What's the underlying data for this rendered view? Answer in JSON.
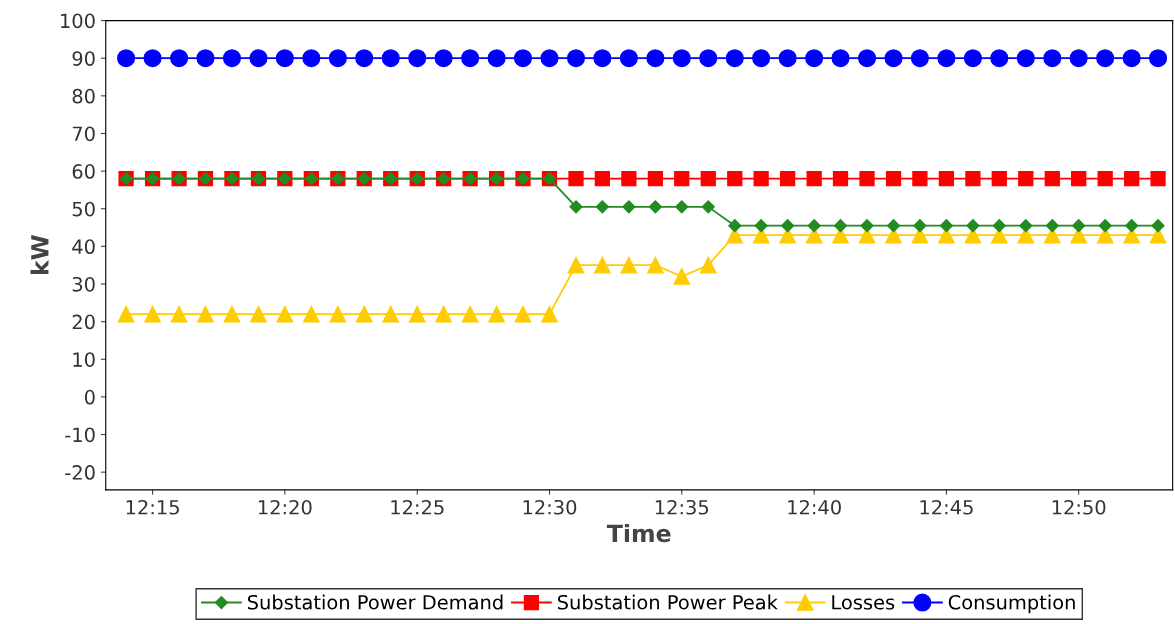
{
  "chart_data": {
    "type": "line",
    "xlabel": "Time",
    "ylabel": "kW",
    "x": [
      12.2333,
      12.25,
      12.2667,
      12.2833,
      12.3,
      12.3167,
      12.3333,
      12.35,
      12.3667,
      12.3833,
      12.4,
      12.4167,
      12.4333,
      12.45,
      12.4667,
      12.4833,
      12.5,
      12.5167,
      12.5333,
      12.55,
      12.5667,
      12.5833,
      12.6,
      12.6167,
      12.6333,
      12.65,
      12.6667,
      12.6833,
      12.7,
      12.7167,
      12.7333,
      12.75,
      12.7667,
      12.7833,
      12.8,
      12.8167,
      12.8333,
      12.85,
      12.8667,
      12.8833
    ],
    "series": [
      {
        "name": "Substation Power Demand",
        "color": "#228b22",
        "marker": "diamond",
        "values": [
          58,
          58,
          58,
          58,
          58,
          58,
          58,
          58,
          58,
          58,
          58,
          58,
          58,
          58,
          58,
          58,
          58,
          50.5,
          50.5,
          50.5,
          50.5,
          50.5,
          50.5,
          45.5,
          45.5,
          45.5,
          45.5,
          45.5,
          45.5,
          45.5,
          45.5,
          45.5,
          45.5,
          45.5,
          45.5,
          45.5,
          45.5,
          45.5,
          45.5,
          45.5
        ]
      },
      {
        "name": "Substation Power Peak",
        "color": "#ff0000",
        "marker": "square",
        "values": [
          58,
          58,
          58,
          58,
          58,
          58,
          58,
          58,
          58,
          58,
          58,
          58,
          58,
          58,
          58,
          58,
          58,
          58,
          58,
          58,
          58,
          58,
          58,
          58,
          58,
          58,
          58,
          58,
          58,
          58,
          58,
          58,
          58,
          58,
          58,
          58,
          58,
          58,
          58,
          58
        ]
      },
      {
        "name": "Losses",
        "color": "#ffcc00",
        "marker": "triangle",
        "values": [
          22,
          22,
          22,
          22,
          22,
          22,
          22,
          22,
          22,
          22,
          22,
          22,
          22,
          22,
          22,
          22,
          22,
          35,
          35,
          35,
          35,
          32,
          35,
          43,
          43,
          43,
          43,
          43,
          43,
          43,
          43,
          43,
          43,
          43,
          43,
          43,
          43,
          43,
          43,
          43
        ]
      },
      {
        "name": "Consumption",
        "color": "#0000ff",
        "marker": "circle",
        "values": [
          90,
          90,
          90,
          90,
          90,
          90,
          90,
          90,
          90,
          90,
          90,
          90,
          90,
          90,
          90,
          90,
          90,
          90,
          90,
          90,
          90,
          90,
          90,
          90,
          90,
          90,
          90,
          90,
          90,
          90,
          90,
          90,
          90,
          90,
          90,
          90,
          90,
          90,
          90,
          90
        ]
      }
    ],
    "xlim": [
      12.2205,
      12.8925
    ],
    "xticks": [
      {
        "value": 12.25,
        "label": "12:15"
      },
      {
        "value": 12.3333,
        "label": "12:20"
      },
      {
        "value": 12.4167,
        "label": "12:25"
      },
      {
        "value": 12.5,
        "label": "12:30"
      },
      {
        "value": 12.5833,
        "label": "12:35"
      },
      {
        "value": 12.6667,
        "label": "12:40"
      },
      {
        "value": 12.75,
        "label": "12:45"
      },
      {
        "value": 12.8333,
        "label": "12:50"
      }
    ],
    "ylim": [
      -24.7,
      100
    ],
    "yticks": [
      -20,
      -10,
      0,
      10,
      20,
      30,
      40,
      50,
      60,
      70,
      80,
      90,
      100
    ],
    "grid": false,
    "legend": "bottom",
    "line_style": "solid"
  }
}
